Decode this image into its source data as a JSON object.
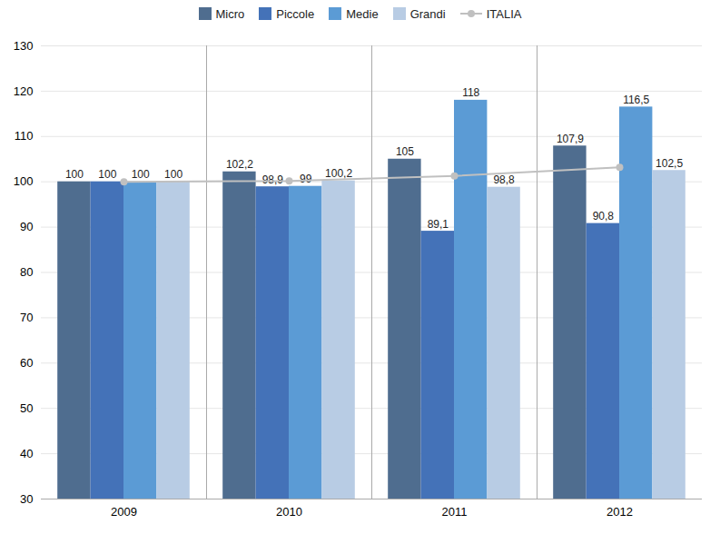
{
  "chart_data": {
    "type": "bar",
    "categories": [
      "2009",
      "2010",
      "2011",
      "2012"
    ],
    "series": [
      {
        "name": "Micro",
        "color": "#4F6D8F",
        "values": [
          100.0,
          102.2,
          105.0,
          107.9
        ],
        "value_labels": [
          "100",
          "102,2",
          "105",
          "107,9"
        ]
      },
      {
        "name": "Piccole",
        "color": "#4472B8",
        "values": [
          100.0,
          98.9,
          89.1,
          90.8
        ],
        "value_labels": [
          "100",
          "98,9",
          "89,1",
          "90,8"
        ]
      },
      {
        "name": "Medie",
        "color": "#5B9BD5",
        "values": [
          100.0,
          99.0,
          118.0,
          116.5
        ],
        "value_labels": [
          "100",
          "99",
          "118",
          "116,5"
        ]
      },
      {
        "name": "Grandi",
        "color": "#B8CCE4",
        "values": [
          100.0,
          100.2,
          98.8,
          102.5
        ],
        "value_labels": [
          "100",
          "100,2",
          "98,8",
          "102,5"
        ]
      },
      {
        "name": "ITALIA",
        "type": "line",
        "marker": "circle",
        "color": "#C0C0C0",
        "values": [
          100.0,
          100.2,
          101.3,
          103.2
        ]
      }
    ],
    "ylim": [
      30,
      130
    ],
    "yticks": [
      30,
      40,
      50,
      60,
      70,
      80,
      90,
      100,
      110,
      120,
      130
    ],
    "grid": true,
    "data_labels": true,
    "legend": "top"
  }
}
